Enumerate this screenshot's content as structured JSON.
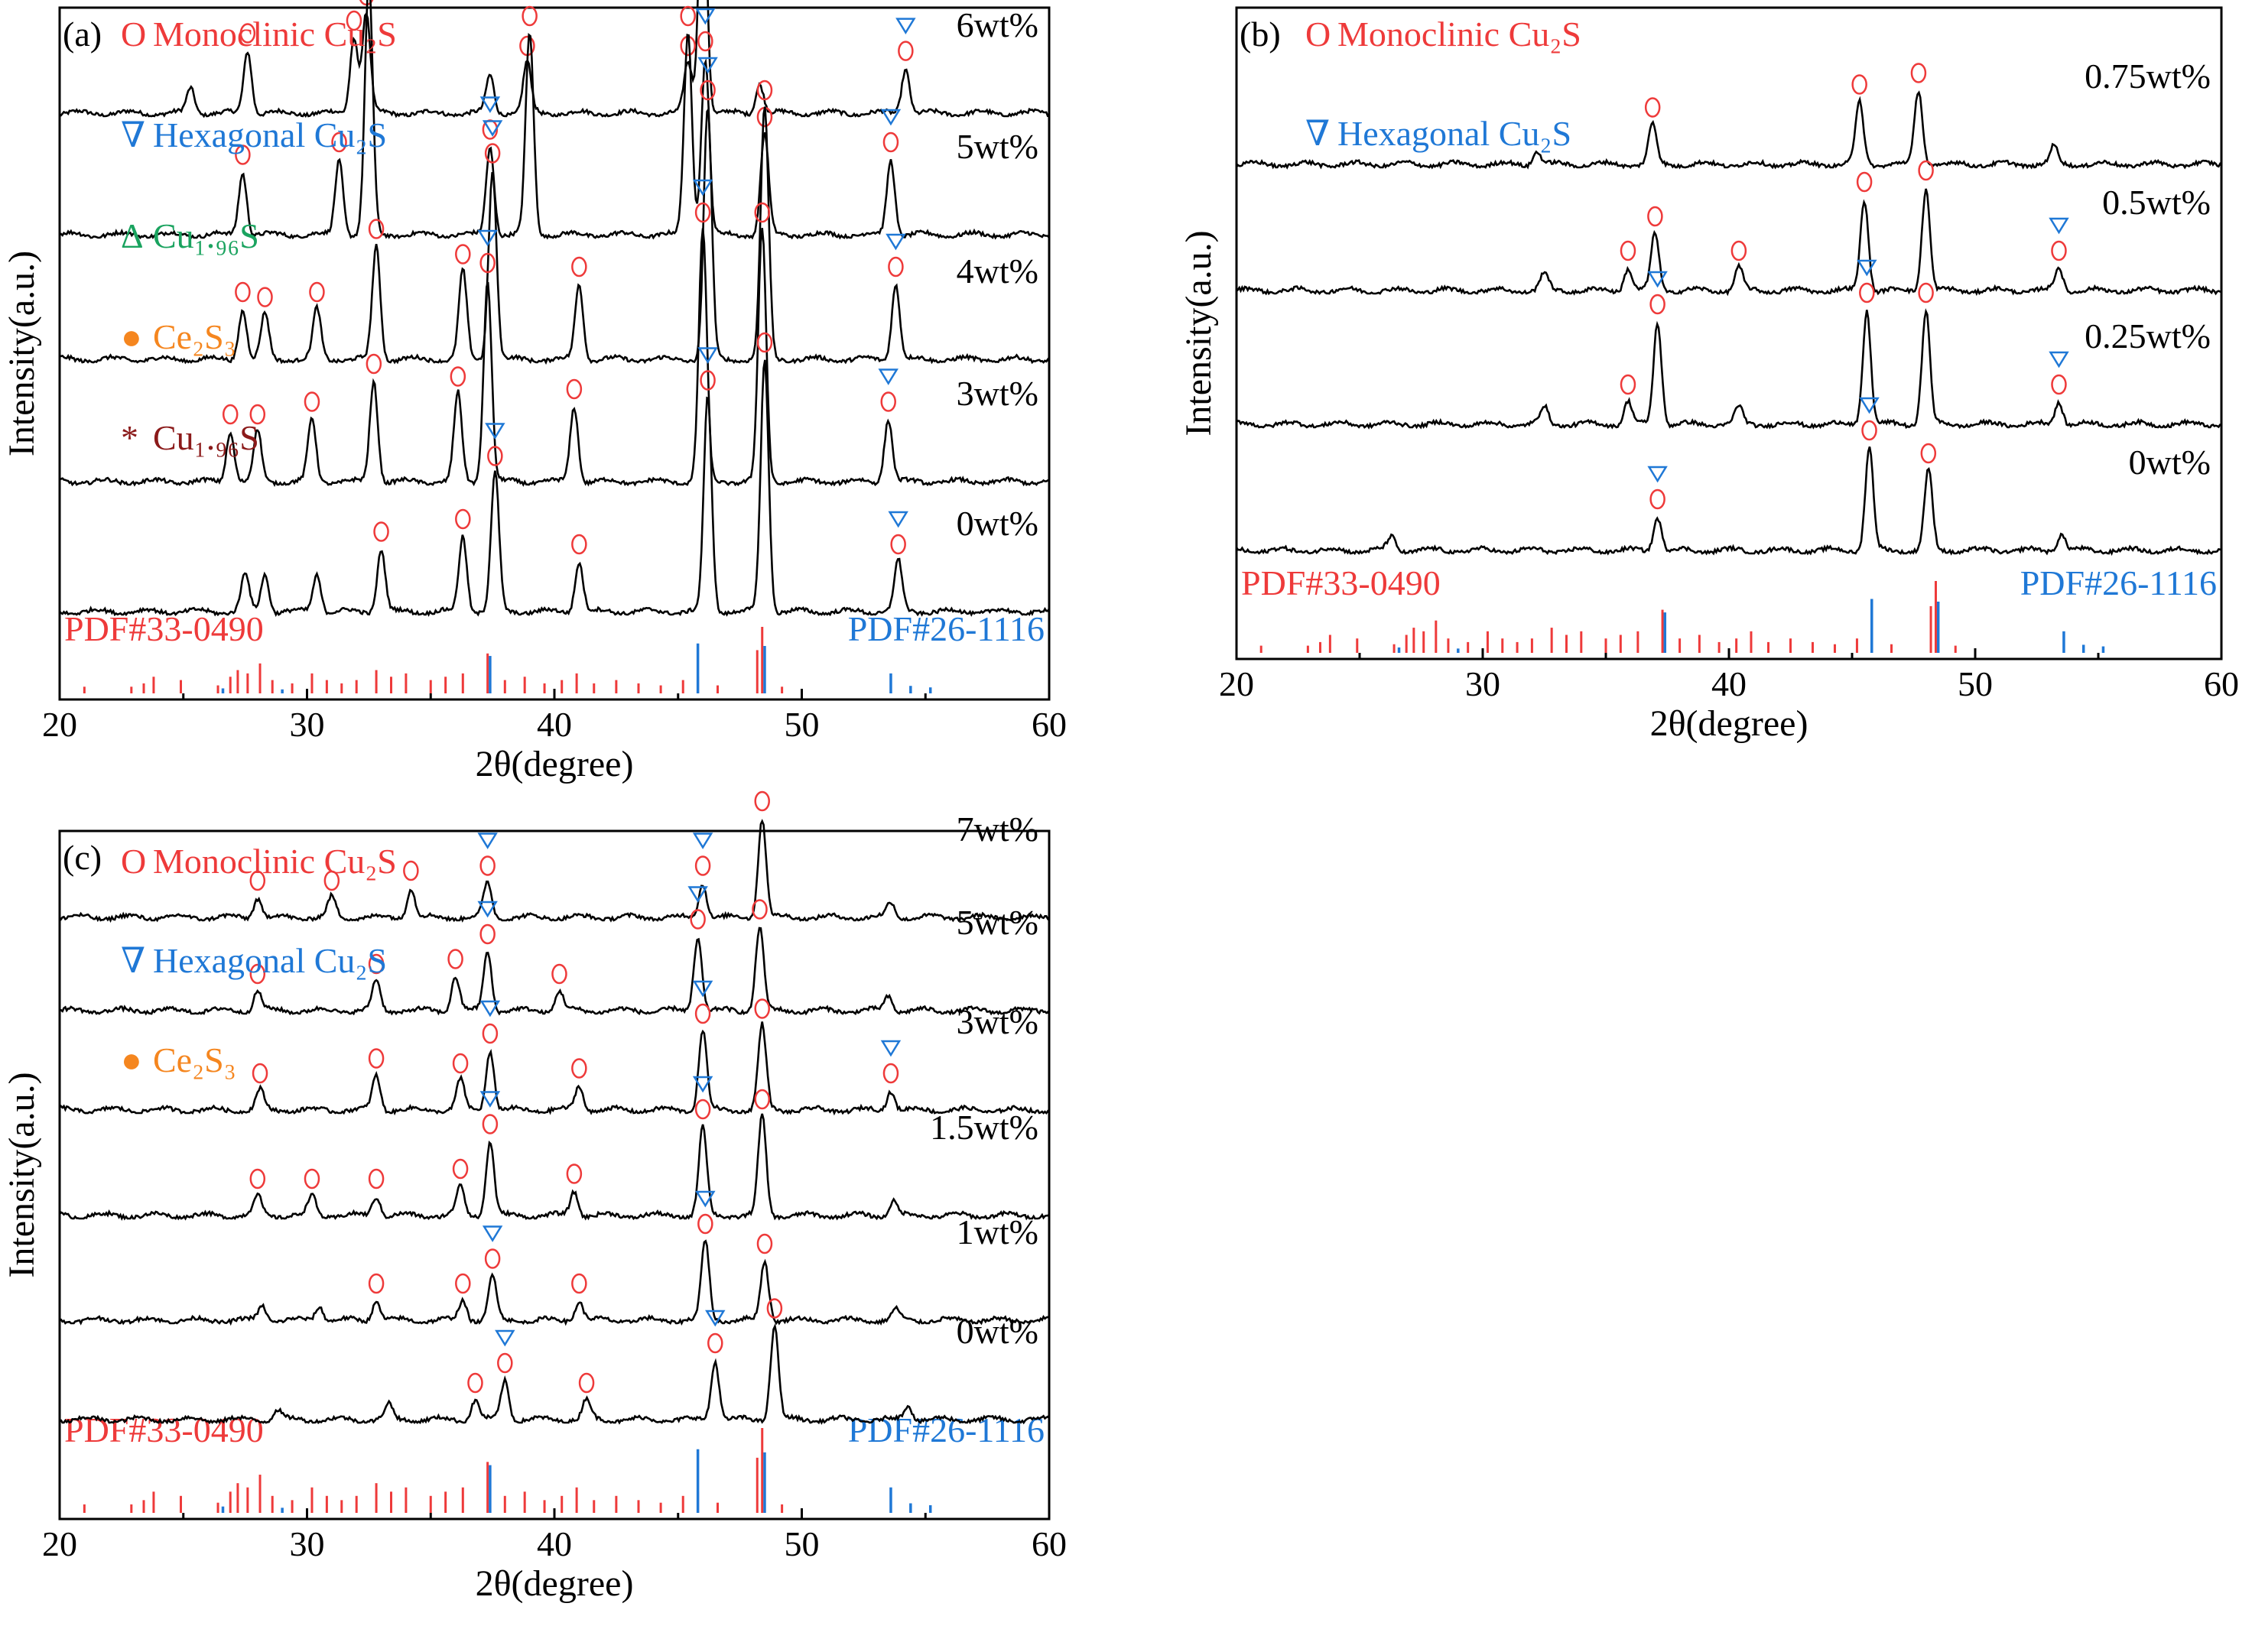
{
  "colors": {
    "red": "#ee3a3a",
    "blue": "#1f78d6",
    "green": "#1aa35f",
    "orange": "#f5861f",
    "darkred": "#8b1a1a",
    "black": "#000000"
  },
  "chart_data": [
    {
      "panel": "(a)",
      "type": "line",
      "xlabel": "2θ(degree)",
      "ylabel": "Intensity(a.u.)",
      "xlim": [
        20,
        60
      ],
      "xticks": [
        "20",
        "30",
        "40",
        "50",
        "60"
      ],
      "legend": [
        {
          "symbol": "O",
          "text": "Monoclinic Cu₂S",
          "color": "#ee3a3a"
        },
        {
          "symbol": "∇",
          "text": "Hexagonal Cu₂S",
          "color": "#1f78d6"
        },
        {
          "symbol": "Δ",
          "text": "Cu₁.₉₆S",
          "color": "#1aa35f"
        },
        {
          "symbol": "●",
          "text": "Ce₂S₃",
          "color": "#f5861f"
        },
        {
          "symbol": "*",
          "text": "Cu₁.₉₆S",
          "color": "#8b1a1a"
        }
      ],
      "series": [
        {
          "name": "6wt%",
          "peaks": [
            [
              25.3,
              0.1
            ],
            [
              27.6,
              0.25
            ],
            [
              31.9,
              0.3
            ],
            [
              32.4,
              0.4
            ],
            [
              37.4,
              0.15
            ],
            [
              38.9,
              0.2
            ],
            [
              45.4,
              0.2
            ],
            [
              46.0,
              1.0
            ],
            [
              48.3,
              0.12
            ],
            [
              54.2,
              0.18
            ]
          ]
        },
        {
          "name": "5wt%",
          "peaks": [
            [
              27.4,
              0.25
            ],
            [
              31.3,
              0.3
            ],
            [
              32.5,
              1.0
            ],
            [
              37.4,
              0.35
            ],
            [
              39.0,
              0.8
            ],
            [
              45.4,
              0.8
            ],
            [
              46.1,
              0.7
            ],
            [
              48.5,
              0.4
            ],
            [
              53.6,
              0.3
            ]
          ]
        },
        {
          "name": "4wt%",
          "peaks": [
            [
              27.4,
              0.2
            ],
            [
              28.3,
              0.18
            ],
            [
              30.4,
              0.2
            ],
            [
              32.8,
              0.45
            ],
            [
              36.3,
              0.35
            ],
            [
              37.5,
              0.75
            ],
            [
              41.0,
              0.3
            ],
            [
              46.2,
              1.0
            ],
            [
              48.5,
              1.0
            ],
            [
              53.8,
              0.3
            ]
          ]
        },
        {
          "name": "3wt%",
          "peaks": [
            [
              26.9,
              0.2
            ],
            [
              28.0,
              0.2
            ],
            [
              30.2,
              0.25
            ],
            [
              32.7,
              0.4
            ],
            [
              36.1,
              0.35
            ],
            [
              37.3,
              0.8
            ],
            [
              40.8,
              0.3
            ],
            [
              46.0,
              1.0
            ],
            [
              48.4,
              1.0
            ],
            [
              53.5,
              0.25
            ]
          ]
        },
        {
          "name": "0wt%",
          "peaks": [
            [
              27.5,
              0.15
            ],
            [
              28.3,
              0.15
            ],
            [
              30.4,
              0.15
            ],
            [
              33.0,
              0.25
            ],
            [
              36.3,
              0.3
            ],
            [
              37.6,
              0.55
            ],
            [
              41.0,
              0.2
            ],
            [
              46.2,
              0.85
            ],
            [
              48.5,
              1.0
            ],
            [
              53.9,
              0.2
            ]
          ]
        }
      ],
      "references": [
        {
          "label": "PDF#33-0490",
          "color": "#ee3a3a"
        },
        {
          "label": "PDF#26-1116",
          "color": "#1f78d6"
        }
      ]
    },
    {
      "panel": "(b)",
      "type": "line",
      "xlabel": "2θ(degree)",
      "ylabel": "Intensity(a.u.)",
      "xlim": [
        20,
        60
      ],
      "xticks": [
        "20",
        "30",
        "40",
        "50",
        "60"
      ],
      "legend": [
        {
          "symbol": "O",
          "text": "Monoclinic Cu₂S",
          "color": "#ee3a3a"
        },
        {
          "symbol": "∇",
          "text": "Hexagonal Cu₂S",
          "color": "#1f78d6"
        }
      ],
      "series": [
        {
          "name": "0.75wt%",
          "peaks": [
            [
              32.2,
              0.12
            ],
            [
              36.9,
              0.35
            ],
            [
              45.3,
              0.55
            ],
            [
              47.7,
              0.65
            ],
            [
              53.2,
              0.15
            ]
          ]
        },
        {
          "name": "0.5wt%",
          "peaks": [
            [
              32.5,
              0.15
            ],
            [
              35.9,
              0.2
            ],
            [
              37.0,
              0.5
            ],
            [
              40.4,
              0.2
            ],
            [
              45.5,
              0.8
            ],
            [
              48.0,
              0.9
            ],
            [
              53.4,
              0.2
            ]
          ]
        },
        {
          "name": "0.25wt%",
          "peaks": [
            [
              32.5,
              0.15
            ],
            [
              35.9,
              0.2
            ],
            [
              37.1,
              0.9
            ],
            [
              40.4,
              0.15
            ],
            [
              45.6,
              1.0
            ],
            [
              48.0,
              1.0
            ],
            [
              53.4,
              0.2
            ]
          ]
        },
        {
          "name": "0wt%",
          "peaks": [
            [
              26.3,
              0.12
            ],
            [
              37.1,
              0.3
            ],
            [
              45.7,
              0.9
            ],
            [
              48.1,
              0.7
            ],
            [
              53.5,
              0.15
            ]
          ]
        }
      ],
      "references": [
        {
          "label": "PDF#33-0490",
          "color": "#ee3a3a"
        },
        {
          "label": "PDF#26-1116",
          "color": "#1f78d6"
        }
      ]
    },
    {
      "panel": "(c)",
      "type": "line",
      "xlabel": "2θ(degree)",
      "ylabel": "Intensity(a.u.)",
      "xlim": [
        20,
        60
      ],
      "xticks": [
        "20",
        "30",
        "40",
        "50",
        "60"
      ],
      "legend": [
        {
          "symbol": "O",
          "text": "Monoclinic Cu₂S",
          "color": "#ee3a3a"
        },
        {
          "symbol": "∇",
          "text": "Hexagonal Cu₂S",
          "color": "#1f78d6"
        },
        {
          "symbol": "●",
          "text": "Ce₂S₃",
          "color": "#f5861f"
        }
      ],
      "series": [
        {
          "name": "7wt%",
          "peaks": [
            [
              28.0,
              0.2
            ],
            [
              31.0,
              0.2
            ],
            [
              34.2,
              0.3
            ],
            [
              37.3,
              0.35
            ],
            [
              46.0,
              0.35
            ],
            [
              48.4,
              1.0
            ],
            [
              53.6,
              0.15
            ]
          ]
        },
        {
          "name": "5wt%",
          "peaks": [
            [
              28.0,
              0.2
            ],
            [
              32.8,
              0.3
            ],
            [
              36.0,
              0.35
            ],
            [
              37.3,
              0.6
            ],
            [
              40.2,
              0.2
            ],
            [
              45.8,
              0.75
            ],
            [
              48.3,
              0.85
            ],
            [
              53.5,
              0.15
            ]
          ]
        },
        {
          "name": "3wt%",
          "peaks": [
            [
              28.1,
              0.2
            ],
            [
              32.8,
              0.35
            ],
            [
              36.2,
              0.3
            ],
            [
              37.4,
              0.6
            ],
            [
              41.0,
              0.25
            ],
            [
              46.0,
              0.8
            ],
            [
              48.4,
              0.85
            ],
            [
              53.6,
              0.2
            ]
          ]
        },
        {
          "name": "1.5wt%",
          "peaks": [
            [
              28.0,
              0.2
            ],
            [
              30.2,
              0.2
            ],
            [
              32.8,
              0.2
            ],
            [
              36.2,
              0.3
            ],
            [
              37.4,
              0.75
            ],
            [
              40.8,
              0.25
            ],
            [
              46.0,
              0.9
            ],
            [
              48.4,
              1.0
            ],
            [
              53.7,
              0.15
            ]
          ]
        },
        {
          "name": "1wt%",
          "peaks": [
            [
              28.2,
              0.15
            ],
            [
              30.5,
              0.15
            ],
            [
              32.8,
              0.2
            ],
            [
              36.3,
              0.2
            ],
            [
              37.5,
              0.45
            ],
            [
              41.0,
              0.2
            ],
            [
              46.1,
              0.8
            ],
            [
              48.5,
              0.6
            ],
            [
              53.8,
              0.1
            ]
          ]
        },
        {
          "name": "0wt%",
          "peaks": [
            [
              28.8,
              0.1
            ],
            [
              33.3,
              0.15
            ],
            [
              36.8,
              0.2
            ],
            [
              38.0,
              0.4
            ],
            [
              41.3,
              0.2
            ],
            [
              46.5,
              0.6
            ],
            [
              48.9,
              0.95
            ],
            [
              54.3,
              0.15
            ]
          ]
        }
      ],
      "references": [
        {
          "label": "PDF#33-0490",
          "color": "#ee3a3a"
        },
        {
          "label": "PDF#26-1116",
          "color": "#1f78d6"
        }
      ]
    }
  ],
  "reference_lines": {
    "pdf_33_0490": [
      [
        21.0,
        0.1
      ],
      [
        22.9,
        0.1
      ],
      [
        23.4,
        0.15
      ],
      [
        23.8,
        0.25
      ],
      [
        24.9,
        0.2
      ],
      [
        26.4,
        0.12
      ],
      [
        26.9,
        0.25
      ],
      [
        27.2,
        0.35
      ],
      [
        27.6,
        0.3
      ],
      [
        28.1,
        0.45
      ],
      [
        28.6,
        0.2
      ],
      [
        29.4,
        0.15
      ],
      [
        30.2,
        0.3
      ],
      [
        30.8,
        0.2
      ],
      [
        31.4,
        0.15
      ],
      [
        32.0,
        0.2
      ],
      [
        32.8,
        0.35
      ],
      [
        33.4,
        0.25
      ],
      [
        34.0,
        0.3
      ],
      [
        35.0,
        0.2
      ],
      [
        35.6,
        0.25
      ],
      [
        36.3,
        0.3
      ],
      [
        37.3,
        0.6
      ],
      [
        38.0,
        0.2
      ],
      [
        38.8,
        0.25
      ],
      [
        39.6,
        0.15
      ],
      [
        40.3,
        0.2
      ],
      [
        40.9,
        0.3
      ],
      [
        41.6,
        0.15
      ],
      [
        42.5,
        0.2
      ],
      [
        43.4,
        0.15
      ],
      [
        44.3,
        0.12
      ],
      [
        45.2,
        0.2
      ],
      [
        45.8,
        0.25
      ],
      [
        46.6,
        0.12
      ],
      [
        48.2,
        0.65
      ],
      [
        48.4,
        1.0
      ],
      [
        49.2,
        0.1
      ]
    ],
    "pdf_26_1116": [
      [
        26.6,
        0.1
      ],
      [
        29.0,
        0.08
      ],
      [
        37.4,
        0.75
      ],
      [
        45.8,
        1.0
      ],
      [
        48.5,
        0.95
      ],
      [
        53.6,
        0.4
      ],
      [
        54.4,
        0.15
      ],
      [
        55.2,
        0.12
      ]
    ]
  }
}
